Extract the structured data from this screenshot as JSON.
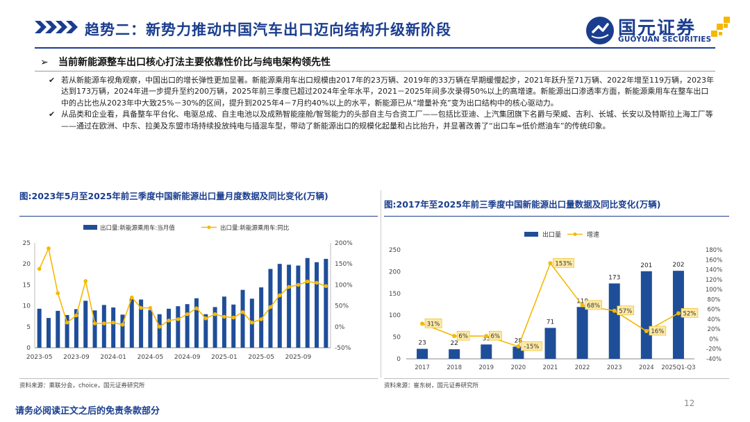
{
  "header": {
    "title": "趋势二：新势力推动中国汽车出口迈向结构升级新阶段",
    "logo_cn": "国元证券",
    "logo_en": "GUOYUAN SECURITIES"
  },
  "headline": "当前新能源整车出口核心打法主要依靠性价比与纯电架构领先性",
  "bullets": [
    "若从新能源车视角观察，中国出口的增长弹性更加显著。新能源乘用车出口规模由2017年的23万辆、2019年的33万辆在早期缓慢起步，2021年跃升至71万辆、2022年增至119万辆，2023年达到173万辆，2024年进一步提升至约200万辆，2025年前三季度已超过2024年全年水平，2021－2025年间多次录得50%以上的高增速。新能源出口渗透率方面，新能源乘用车在整车出口中的占比也从2023年中大致25%－30%的区间，提升到2025年4－7月约40%以上的水平，新能源已从“增量补充”变为出口结构中的核心驱动力。",
    "从品类和企业看，具备整车平台化、电驱总成、自主电池以及成熟智能座舱/智驾能力的头部自主与合资工厂——包括比亚迪、上汽集团旗下名爵与荣威、吉利、长城、长安以及特斯拉上海工厂等——通过在欧洲、中东、拉美及东盟市场持续投放纯电与插混车型，带动了新能源出口的规模化起量和占比抬升，并显著改善了“出口车=低价燃油车”的传统印象。"
  ],
  "figure1": {
    "title": "图:2023年5月至2025年前三季度中国新能源出口量月度数据及同比变化(万辆)",
    "source": "资料来源：乘联分会，choice，国元证券研究所"
  },
  "figure2": {
    "title": "图:2017年至2025年前三季度中国新能源出口量数据及同比变化(万辆)",
    "source": "资料来源：崔东树，国元证券研究所"
  },
  "footer": {
    "disclaimer": "请务必阅读正文之后的免责条款部分",
    "page_number": "12"
  },
  "colors": {
    "brand_blue": "#1a3d8f",
    "bar_blue": "#1f4e99",
    "line_yellow": "#f5b800"
  },
  "chart_data": [
    {
      "type": "bar",
      "combo": "bar+line",
      "series": [
        {
          "name": "出口量:新能源乘用车:当月值",
          "type": "bar",
          "axis": "left",
          "values": [
            9.3,
            7.1,
            8.8,
            7.8,
            9.2,
            11.2,
            8.9,
            10.2,
            9.6,
            7.9,
            11.7,
            11.5,
            9.0,
            8.0,
            9.3,
            9.9,
            10.4,
            11.8,
            8.0,
            9.7,
            12.2,
            10.3,
            13.8,
            11.7,
            14.4,
            18.8,
            20.0,
            19.8,
            19.6,
            21.4,
            20.4,
            21.2
          ]
        },
        {
          "name": "出口量:新能源乘用车:同比",
          "type": "line",
          "axis": "right",
          "values": [
            138,
            187,
            80,
            10,
            27,
            109,
            8,
            8,
            10,
            5,
            70,
            45,
            45,
            0,
            15,
            18,
            30,
            44,
            20,
            30,
            24,
            22,
            35,
            10,
            18,
            47,
            75,
            95,
            100,
            108,
            105,
            97
          ]
        }
      ],
      "x_tick_labels": [
        "2023-05",
        "2023-09",
        "2024-01",
        "2024-05",
        "2024-09",
        "2025-01",
        "2025-05",
        "2025-09"
      ],
      "ylim_left": [
        0,
        25
      ],
      "yticks_left": [
        "0",
        "5",
        "10",
        "15",
        "20",
        "25"
      ],
      "ylim_right": [
        -50,
        200
      ],
      "yticks_right": [
        "-50%",
        "0%",
        "50%",
        "100%",
        "150%",
        "200%"
      ],
      "legend_position": "top",
      "grid": false
    },
    {
      "type": "bar",
      "combo": "bar+line",
      "categories": [
        "2017",
        "2018",
        "2019",
        "2020",
        "2021",
        "2022",
        "2023",
        "2024",
        "2025Q1-Q3"
      ],
      "series": [
        {
          "name": "出口量",
          "type": "bar",
          "axis": "left",
          "values": [
            23,
            22,
            33,
            28,
            71,
            119,
            173,
            201,
            202
          ],
          "labels": [
            "23",
            "22",
            "33",
            "28",
            "71",
            "119",
            "173",
            "201",
            "202"
          ]
        },
        {
          "name": "增速",
          "type": "line",
          "axis": "right",
          "values": [
            31,
            6,
            6,
            -15,
            153,
            68,
            57,
            16,
            52
          ],
          "labels": [
            "31%",
            "6%",
            "6%",
            "-15%",
            "153%",
            "68%",
            "57%",
            "16%",
            "52%"
          ]
        }
      ],
      "ylim_left": [
        0,
        250
      ],
      "yticks_left": [
        "0",
        "50",
        "100",
        "150",
        "200",
        "250"
      ],
      "ylim_right": [
        -40,
        180
      ],
      "yticks_right": [
        "-40%",
        "-20%",
        "0%",
        "20%",
        "40%",
        "60%",
        "80%",
        "100%",
        "120%",
        "140%",
        "160%",
        "180%"
      ],
      "legend_position": "top",
      "grid": false
    }
  ]
}
